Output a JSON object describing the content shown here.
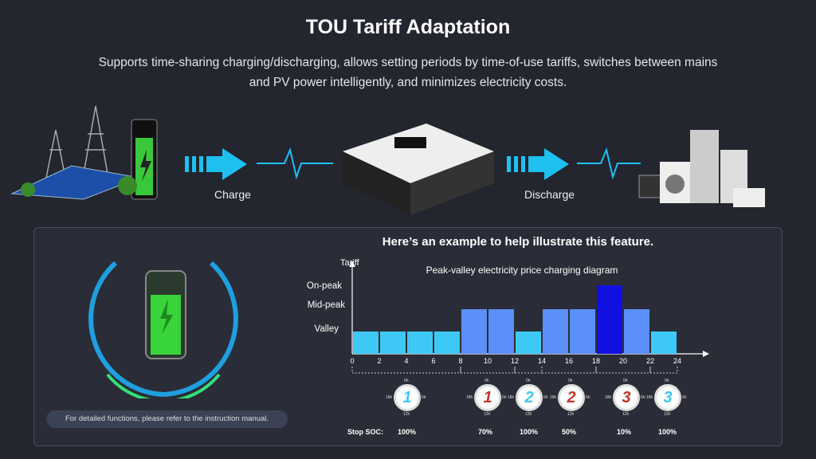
{
  "header": {
    "title": "TOU Tariff Adaptation",
    "subtitle": "Supports time-sharing charging/discharging, allows setting periods by time-of-use tariffs, switches between mains and PV power intelligently, and minimizes electricity costs."
  },
  "flow": {
    "charge_label": "Charge",
    "discharge_label": "Discharge"
  },
  "panel": {
    "heading": "Here’s an example to help illustrate this feature.",
    "note": "For detailed functions, please refer to the instruction manual."
  },
  "colors": {
    "valley": "#3ec8f5",
    "mid": "#5b8ff9",
    "peak": "#1010e0",
    "arrow": "#1ec0f0"
  },
  "chart_data": {
    "type": "bar",
    "title": "Peak-valley electricity price charging diagram",
    "ylabel": "Tariff",
    "y_levels": [
      "Valley",
      "Mid-peak",
      "On-peak"
    ],
    "x_ticks": [
      "0",
      "2",
      "4",
      "6",
      "8",
      "10",
      "12",
      "14",
      "16",
      "18",
      "20",
      "22",
      "24"
    ],
    "bars": [
      {
        "start": 0,
        "end": 2,
        "level": "Valley"
      },
      {
        "start": 2,
        "end": 4,
        "level": "Valley"
      },
      {
        "start": 4,
        "end": 6,
        "level": "Valley"
      },
      {
        "start": 6,
        "end": 8,
        "level": "Valley"
      },
      {
        "start": 8,
        "end": 10,
        "level": "Mid-peak"
      },
      {
        "start": 10,
        "end": 12,
        "level": "Mid-peak"
      },
      {
        "start": 12,
        "end": 14,
        "level": "Valley"
      },
      {
        "start": 14,
        "end": 16,
        "level": "Mid-peak"
      },
      {
        "start": 16,
        "end": 18,
        "level": "Mid-peak"
      },
      {
        "start": 18,
        "end": 20,
        "level": "On-peak"
      },
      {
        "start": 20,
        "end": 22,
        "level": "Mid-peak"
      },
      {
        "start": 22,
        "end": 24,
        "level": "Valley"
      }
    ]
  },
  "schedule": {
    "stop_soc_label": "Stop SOC:",
    "clock_ticks": [
      "0h",
      "6h",
      "12h",
      "18h"
    ],
    "periods": [
      {
        "num": "1",
        "mode": "charge",
        "soc": "100%"
      },
      {
        "num": "1",
        "mode": "discharge",
        "soc": "70%"
      },
      {
        "num": "2",
        "mode": "charge",
        "soc": "100%"
      },
      {
        "num": "2",
        "mode": "discharge",
        "soc": "50%"
      },
      {
        "num": "3",
        "mode": "discharge",
        "soc": "10%"
      },
      {
        "num": "3",
        "mode": "charge",
        "soc": "100%"
      }
    ]
  }
}
